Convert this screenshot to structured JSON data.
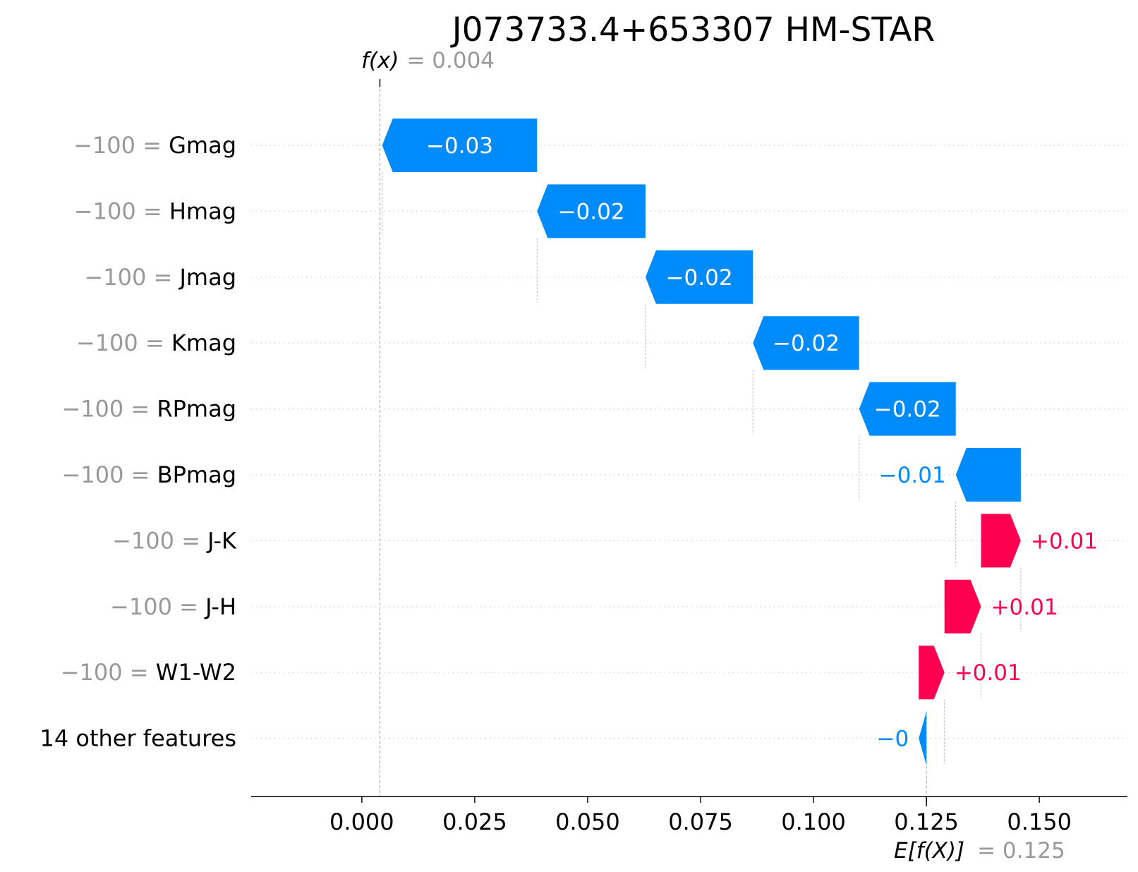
{
  "chart_data": {
    "type": "waterfall",
    "title": "J073733.4+653307 HM-STAR",
    "fx_label": "f(x)",
    "fx_value_text": "= 0.004",
    "fx_value": 0.004,
    "efx_label": "E[f(X)]",
    "efx_value_text": "= 0.125",
    "efx_value": 0.125,
    "xlim": [
      -0.0245,
      0.1695
    ],
    "xticks": [
      "0.000",
      "0.025",
      "0.050",
      "0.075",
      "0.100",
      "0.125",
      "0.150"
    ],
    "xtick_values": [
      0,
      0.025,
      0.05,
      0.075,
      0.1,
      0.125,
      0.15
    ],
    "features": [
      {
        "value": "−100 =",
        "name": "Gmag",
        "label": "−0.03",
        "start": 0.0388,
        "end": 0.0045,
        "label_inside": true
      },
      {
        "value": "−100 =",
        "name": "Hmag",
        "label": "−0.02",
        "start": 0.0628,
        "end": 0.0388,
        "label_inside": true
      },
      {
        "value": "−100 =",
        "name": "Jmag",
        "label": "−0.02",
        "start": 0.0866,
        "end": 0.0628,
        "label_inside": true
      },
      {
        "value": "−100 =",
        "name": "Kmag",
        "label": "−0.02",
        "start": 0.1101,
        "end": 0.0866,
        "label_inside": true
      },
      {
        "value": "−100 =",
        "name": "RPmag",
        "label": "−0.02",
        "start": 0.1315,
        "end": 0.1101,
        "label_inside": true
      },
      {
        "value": "−100 =",
        "name": "BPmag",
        "label": "−0.01",
        "start": 0.1459,
        "end": 0.1315,
        "label_inside": false
      },
      {
        "value": "−100 =",
        "name": "J-K",
        "label": "+0.01",
        "start": 0.1371,
        "end": 0.1459,
        "label_inside": false
      },
      {
        "value": "−100 =",
        "name": "J-H",
        "label": "+0.01",
        "start": 0.129,
        "end": 0.1371,
        "label_inside": false
      },
      {
        "value": "−100 =",
        "name": "W1-W2",
        "label": "+0.01",
        "start": 0.1233,
        "end": 0.129,
        "label_inside": false
      },
      {
        "value": "",
        "name": "14 other features",
        "label": "−0",
        "start": 0.125,
        "end": 0.1233,
        "label_inside": false
      }
    ],
    "colors": {
      "positive": "#ff0051",
      "negative": "#008bfb",
      "gray_text": "#999999"
    }
  }
}
